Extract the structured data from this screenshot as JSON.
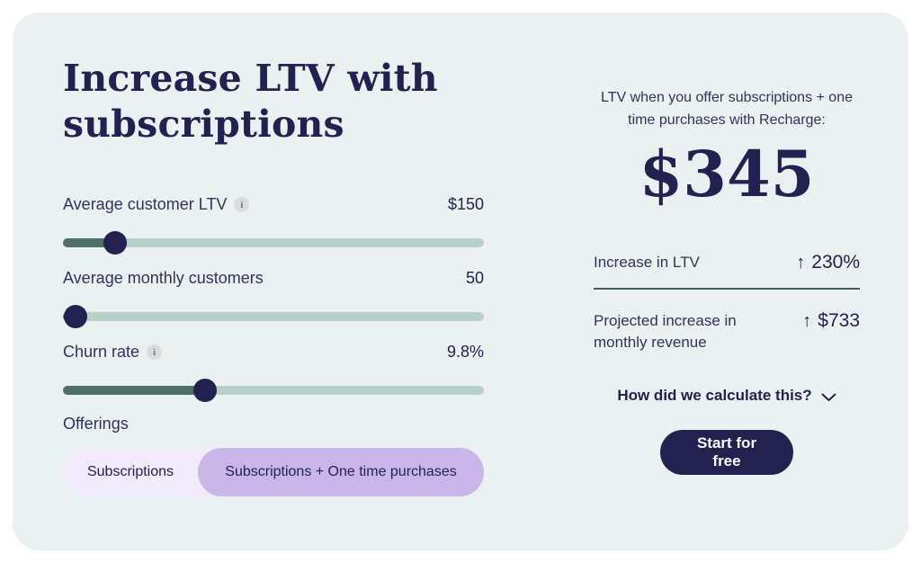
{
  "title": "Increase LTV with subscriptions",
  "sliders": [
    {
      "label": "Average customer LTV",
      "has_info": true,
      "value": "$150",
      "percent": 12.4
    },
    {
      "label": "Average monthly customers",
      "has_info": false,
      "value": "50",
      "percent": 3
    },
    {
      "label": "Churn rate",
      "has_info": true,
      "value": "9.8%",
      "percent": 33.8
    }
  ],
  "info_icon_glyph": "i",
  "offerings": {
    "label": "Offerings",
    "options": [
      {
        "label": "Subscriptions",
        "selected": false
      },
      {
        "label": "Subscriptions + One time purchases",
        "selected": true
      }
    ]
  },
  "result": {
    "caption": "LTV when you offer subscriptions + one time purchases with Recharge:",
    "value": "$345",
    "stats": [
      {
        "label": "Increase in LTV",
        "arrow": "↑",
        "value": "230%"
      },
      {
        "label": "Projected increase in monthly revenue",
        "arrow": "↑",
        "value": "$733"
      }
    ],
    "calc_link": "How did we calculate this?",
    "cta": "Start for free"
  },
  "colors": {
    "navy": "#232150",
    "label_navy": "#33325C",
    "card_bg": "#EBF1F0",
    "track": "#B7D1CA",
    "track_fill": "#4C7266",
    "divider": "#3E5F55",
    "pill_bg": "#F0EAFB",
    "pill_selected": "#C9B6E9",
    "info_bg": "#D9DDDD"
  }
}
